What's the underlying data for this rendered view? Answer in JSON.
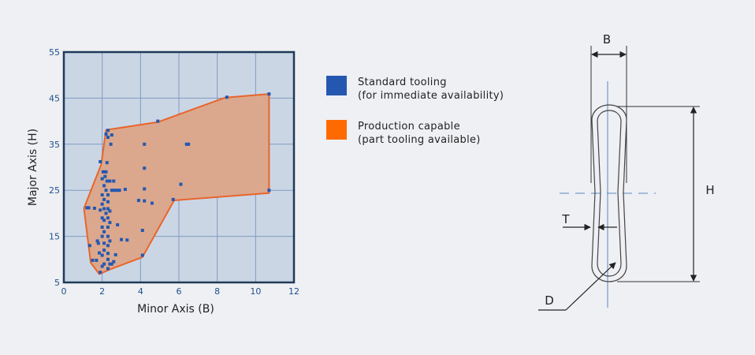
{
  "chart_data": {
    "type": "scatter",
    "title": "",
    "xlabel": "Minor Axis (B)",
    "ylabel": "Major Axis (H)",
    "xlim": [
      0,
      12
    ],
    "ylim": [
      5,
      55
    ],
    "xticks": [
      0,
      2,
      4,
      6,
      8,
      10,
      12
    ],
    "yticks": [
      5,
      15,
      25,
      35,
      45,
      55
    ],
    "grid": true,
    "legend_position": "right",
    "colors": {
      "plot_bg": "#cbd6e5",
      "grid": "#7f9bc2",
      "frame": "#1e3a5a",
      "standard": "#2458b0",
      "production_fill": "#dba88e",
      "production_edge": "#e8652a",
      "tick_text": "#1f4f8f"
    },
    "series": [
      {
        "name": "Standard tooling",
        "name_line2": "(for immediate availability)",
        "color": "#2458b0",
        "points": [
          [
            1.2,
            21.2
          ],
          [
            1.3,
            21.2
          ],
          [
            1.35,
            13
          ],
          [
            1.5,
            9.8
          ],
          [
            1.6,
            21.1
          ],
          [
            1.7,
            9.8
          ],
          [
            1.75,
            14
          ],
          [
            1.8,
            13.5
          ],
          [
            1.85,
            11.4
          ],
          [
            1.9,
            20.7
          ],
          [
            1.9,
            31.2
          ],
          [
            1.9,
            7.2
          ],
          [
            2.0,
            8.5
          ],
          [
            2.0,
            10.9
          ],
          [
            2.0,
            15
          ],
          [
            2.0,
            17
          ],
          [
            2.0,
            19
          ],
          [
            2.0,
            22
          ],
          [
            2.0,
            24
          ],
          [
            2.0,
            27.5
          ],
          [
            2.05,
            29
          ],
          [
            2.1,
            9
          ],
          [
            2.1,
            12
          ],
          [
            2.1,
            13.5
          ],
          [
            2.1,
            16
          ],
          [
            2.1,
            18.5
          ],
          [
            2.1,
            21
          ],
          [
            2.1,
            23
          ],
          [
            2.1,
            26
          ],
          [
            2.15,
            28
          ],
          [
            2.2,
            29
          ],
          [
            2.2,
            20
          ],
          [
            2.2,
            25
          ],
          [
            2.2,
            37.2
          ],
          [
            2.25,
            27
          ],
          [
            2.25,
            31
          ],
          [
            2.3,
            8
          ],
          [
            2.3,
            10
          ],
          [
            2.3,
            11.3
          ],
          [
            2.3,
            13
          ],
          [
            2.3,
            15
          ],
          [
            2.3,
            17
          ],
          [
            2.3,
            19
          ],
          [
            2.3,
            21
          ],
          [
            2.3,
            22.5
          ],
          [
            2.3,
            24
          ],
          [
            2.3,
            36.5
          ],
          [
            2.3,
            38
          ],
          [
            2.4,
            9
          ],
          [
            2.4,
            14
          ],
          [
            2.4,
            18
          ],
          [
            2.4,
            20.5
          ],
          [
            2.4,
            27
          ],
          [
            2.45,
            35
          ],
          [
            2.5,
            9
          ],
          [
            2.5,
            25
          ],
          [
            2.5,
            37
          ],
          [
            2.6,
            27
          ],
          [
            2.6,
            25
          ],
          [
            2.6,
            9.5
          ],
          [
            2.7,
            11
          ],
          [
            2.75,
            25
          ],
          [
            2.8,
            17.5
          ],
          [
            2.9,
            25
          ],
          [
            3.0,
            14.3
          ],
          [
            3.2,
            25.2
          ],
          [
            3.3,
            14.2
          ],
          [
            3.9,
            22.8
          ],
          [
            4.1,
            16.3
          ],
          [
            4.1,
            10.9
          ],
          [
            4.2,
            29.8
          ],
          [
            4.2,
            35
          ],
          [
            4.2,
            25.3
          ],
          [
            4.2,
            22.7
          ],
          [
            4.6,
            22.2
          ],
          [
            4.9,
            40
          ],
          [
            5.7,
            23
          ],
          [
            6.1,
            26.3
          ],
          [
            6.4,
            35
          ],
          [
            6.5,
            35
          ],
          [
            8.5,
            45.2
          ],
          [
            10.7,
            45.9
          ],
          [
            10.7,
            25
          ]
        ]
      },
      {
        "name": "Production capable",
        "name_line2": "(part tooling available)",
        "color": "#ff6a00",
        "hull": [
          [
            1.05,
            21.1
          ],
          [
            1.4,
            9.3
          ],
          [
            1.85,
            6.8
          ],
          [
            2.4,
            7.8
          ],
          [
            4.1,
            10.5
          ],
          [
            5.75,
            22.8
          ],
          [
            10.7,
            24.4
          ],
          [
            10.7,
            45.9
          ],
          [
            8.4,
            45.1
          ],
          [
            4.9,
            39.8
          ],
          [
            2.2,
            38.1
          ],
          [
            1.95,
            30.6
          ],
          [
            1.05,
            21.1
          ]
        ]
      }
    ]
  },
  "diagram": {
    "labels": {
      "b": "B",
      "h": "H",
      "t": "T",
      "d": "D"
    }
  }
}
